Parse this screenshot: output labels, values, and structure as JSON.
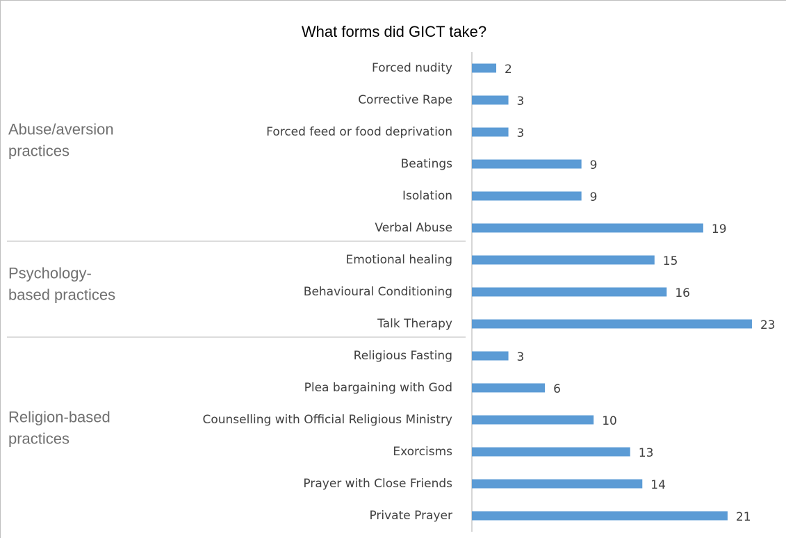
{
  "chart_data": {
    "type": "bar",
    "orientation": "horizontal",
    "title": "What forms did GICT take?",
    "color": "#5b9bd5",
    "xlim": [
      0,
      25
    ],
    "groups": [
      {
        "label": [
          "Abuse/aversion",
          "practices"
        ],
        "categories": [
          "Forced nudity",
          "Corrective Rape",
          "Forced feed or food deprivation",
          "Beatings",
          "Isolation",
          "Verbal Abuse"
        ],
        "values": [
          2,
          3,
          3,
          9,
          9,
          19
        ]
      },
      {
        "label": [
          "Psychology-",
          "based practices"
        ],
        "categories": [
          "Emotional healing",
          "Behavioural Conditioning",
          "Talk Therapy"
        ],
        "values": [
          15,
          16,
          23
        ]
      },
      {
        "label": [
          "Religion-based",
          "practices"
        ],
        "categories": [
          "Religious Fasting",
          "Plea bargaining with God",
          "Counselling with Official Religious Ministry",
          "Exorcisms",
          "Prayer with Close Friends",
          "Private Prayer"
        ],
        "values": [
          3,
          6,
          10,
          13,
          14,
          21
        ]
      }
    ]
  }
}
